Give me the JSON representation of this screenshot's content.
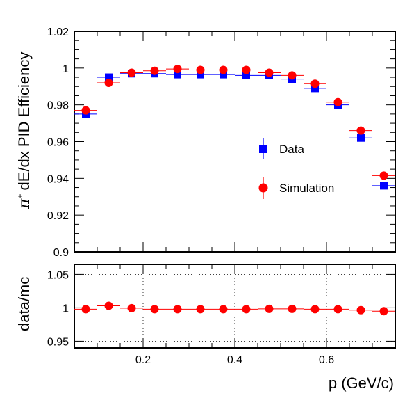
{
  "chart_data": [
    {
      "type": "scatter",
      "panel": "efficiency",
      "xlabel": "p (GeV/c)",
      "ylabel_main": "dE/dx PID Efficiency",
      "ylabel_symbol": "π",
      "ylabel_sup": "+",
      "xlim": [
        0.05,
        0.75
      ],
      "ylim": [
        0.9,
        1.02
      ],
      "yticks": [
        0.9,
        0.92,
        0.94,
        0.96,
        0.98,
        1.0,
        1.02
      ],
      "ytick_labels": [
        "0.9",
        "0.92",
        "0.94",
        "0.96",
        "0.98",
        "1",
        "1.02"
      ],
      "grid": false,
      "legend_position": "middle-right",
      "x": [
        0.075,
        0.125,
        0.175,
        0.225,
        0.275,
        0.325,
        0.375,
        0.425,
        0.475,
        0.525,
        0.575,
        0.625,
        0.675,
        0.725
      ],
      "series": [
        {
          "name": "Data",
          "marker": "square",
          "color": "#0000ff",
          "values": [
            0.975,
            0.995,
            0.997,
            0.997,
            0.9965,
            0.9965,
            0.9965,
            0.996,
            0.996,
            0.994,
            0.989,
            0.98,
            0.962,
            0.936
          ]
        },
        {
          "name": "Simulation",
          "marker": "circle",
          "color": "#ff0000",
          "values": [
            0.977,
            0.992,
            0.9975,
            0.9985,
            0.9995,
            0.999,
            0.999,
            0.999,
            0.9975,
            0.996,
            0.9915,
            0.9815,
            0.966,
            0.9415
          ]
        }
      ]
    },
    {
      "type": "scatter",
      "panel": "ratio",
      "xlabel": "p (GeV/c)",
      "ylabel": "data/mc",
      "xlim": [
        0.05,
        0.75
      ],
      "ylim": [
        0.94,
        1.065
      ],
      "xticks": [
        0.2,
        0.4,
        0.6
      ],
      "xtick_labels": [
        "0.2",
        "0.4",
        "0.6"
      ],
      "yticks": [
        0.95,
        1.0,
        1.05
      ],
      "ytick_labels": [
        "0.95",
        "1",
        "1.05"
      ],
      "grid": true,
      "x": [
        0.075,
        0.125,
        0.175,
        0.225,
        0.275,
        0.325,
        0.375,
        0.425,
        0.475,
        0.525,
        0.575,
        0.625,
        0.675,
        0.725
      ],
      "series": [
        {
          "marker": "circle",
          "color": "#ff0000",
          "values": [
            0.998,
            1.003,
            0.9995,
            0.998,
            0.998,
            0.998,
            0.998,
            0.998,
            0.9985,
            0.9985,
            0.998,
            0.998,
            0.9965,
            0.995
          ]
        }
      ]
    }
  ]
}
